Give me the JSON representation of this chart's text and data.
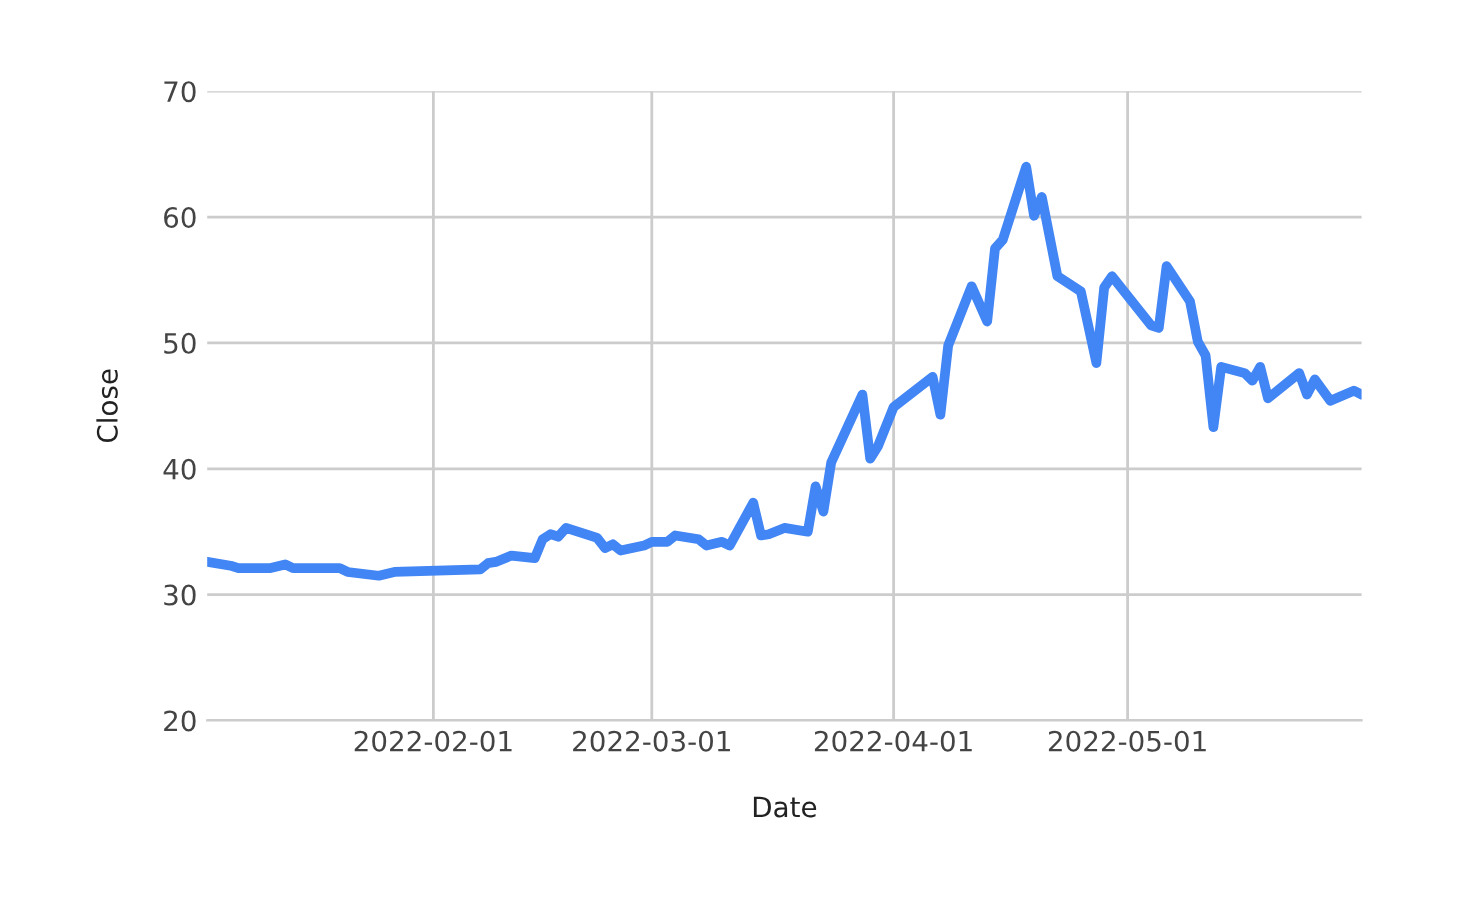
{
  "chart_data": {
    "type": "line",
    "xlabel": "Date",
    "ylabel": "Close",
    "xlim": [
      "2022-01-03",
      "2022-05-31"
    ],
    "xticks": [
      "2022-02-01",
      "2022-03-01",
      "2022-04-01",
      "2022-05-01"
    ],
    "ylim": [
      20,
      70
    ],
    "yticks": [
      20,
      30,
      40,
      50,
      60,
      70
    ],
    "grid": true,
    "marker": "none",
    "line_style": "solid",
    "series": [
      {
        "color": "#4285f4",
        "x": [
          "2022-01-03",
          "2022-01-06",
          "2022-01-07",
          "2022-01-11",
          "2022-01-13",
          "2022-01-14",
          "2022-01-20",
          "2022-01-21",
          "2022-01-25",
          "2022-01-27",
          "2022-02-07",
          "2022-02-08",
          "2022-02-09",
          "2022-02-11",
          "2022-02-14",
          "2022-02-15",
          "2022-02-16",
          "2022-02-17",
          "2022-02-18",
          "2022-02-22",
          "2022-02-23",
          "2022-02-24",
          "2022-02-25",
          "2022-02-28",
          "2022-03-01",
          "2022-03-03",
          "2022-03-04",
          "2022-03-07",
          "2022-03-08",
          "2022-03-10",
          "2022-03-11",
          "2022-03-14",
          "2022-03-15",
          "2022-03-16",
          "2022-03-18",
          "2022-03-21",
          "2022-03-22",
          "2022-03-23",
          "2022-03-24",
          "2022-03-28",
          "2022-03-29",
          "2022-03-30",
          "2022-04-01",
          "2022-04-06",
          "2022-04-07",
          "2022-04-08",
          "2022-04-11",
          "2022-04-13",
          "2022-04-14",
          "2022-04-15",
          "2022-04-18",
          "2022-04-19",
          "2022-04-20",
          "2022-04-22",
          "2022-04-25",
          "2022-04-27",
          "2022-04-28",
          "2022-04-29",
          "2022-05-04",
          "2022-05-05",
          "2022-05-06",
          "2022-05-09",
          "2022-05-10",
          "2022-05-11",
          "2022-05-12",
          "2022-05-13",
          "2022-05-16",
          "2022-05-17",
          "2022-05-18",
          "2022-05-19",
          "2022-05-23",
          "2022-05-24",
          "2022-05-25",
          "2022-05-27",
          "2022-05-30",
          "2022-05-31"
        ],
        "values": [
          32.6,
          32.3,
          32.1,
          32.1,
          32.4,
          32.1,
          32.1,
          31.8,
          31.5,
          31.8,
          32.0,
          32.5,
          32.6,
          33.1,
          32.9,
          34.4,
          34.8,
          34.6,
          35.3,
          34.5,
          33.7,
          34.0,
          33.5,
          33.9,
          34.2,
          34.2,
          34.7,
          34.4,
          33.9,
          34.2,
          33.9,
          37.3,
          34.7,
          34.8,
          35.3,
          35.0,
          38.6,
          36.6,
          40.5,
          45.9,
          40.8,
          41.8,
          44.9,
          47.3,
          44.3,
          49.8,
          54.5,
          51.7,
          57.5,
          58.2,
          64.0,
          60.1,
          61.6,
          55.3,
          54.1,
          48.4,
          54.4,
          55.3,
          51.4,
          51.2,
          56.1,
          53.3,
          50.1,
          49.0,
          43.3,
          48.1,
          47.6,
          47.0,
          48.1,
          45.6,
          47.6,
          45.9,
          47.1,
          45.4,
          46.2,
          45.9
        ]
      }
    ]
  }
}
